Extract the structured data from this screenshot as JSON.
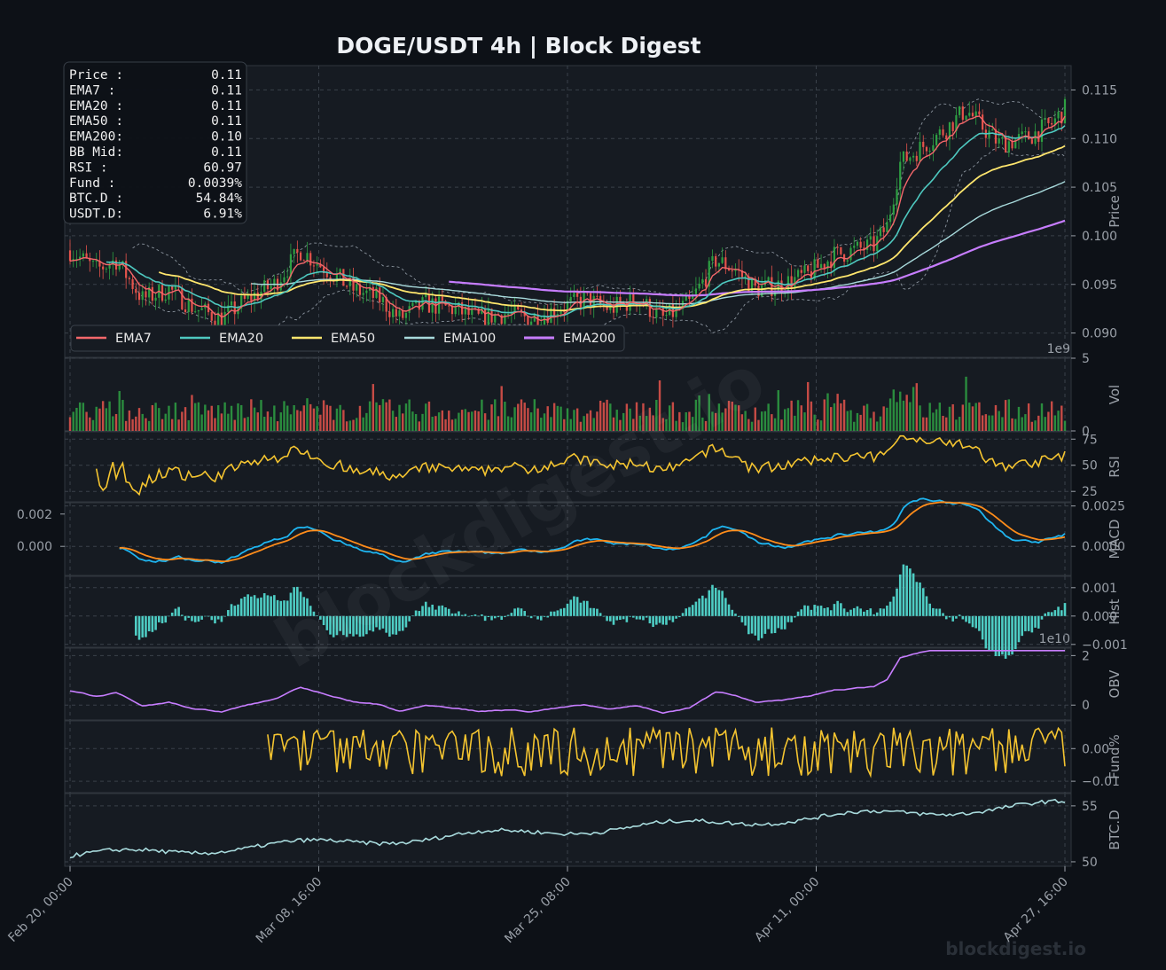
{
  "title": "DOGE/USDT  4h  |  Block Digest",
  "watermark": "blockdigest.io",
  "footer_brand": "blockdigest.io",
  "colors": {
    "background": "#0d1117",
    "panel": "#161b22",
    "up": "#2ea043",
    "down": "#e5534b",
    "ema7": "#f4676b",
    "ema20": "#4ec9c0",
    "ema50": "#ffe66d",
    "ema100": "#a8dadc",
    "ema200": "#c77dff",
    "rsi": "#f4c430",
    "macd": "#1fb5f0",
    "signal": "#ff8c1a",
    "hist": "#4ecdc4",
    "obv": "#c77dff",
    "funding": "#f4c430",
    "btcd": "#a8dadc"
  },
  "info_box": [
    {
      "label": "Price :",
      "value": "0.11"
    },
    {
      "label": "EMA7  :",
      "value": "0.11"
    },
    {
      "label": "EMA20 :",
      "value": "0.11"
    },
    {
      "label": "EMA50 :",
      "value": "0.11"
    },
    {
      "label": "EMA200:",
      "value": "0.10"
    },
    {
      "label": "BB Mid:",
      "value": "0.11"
    },
    {
      "label": "RSI   :",
      "value": "60.97"
    },
    {
      "label": "Fund  :",
      "value": "0.0039%"
    },
    {
      "label": "BTC.D :",
      "value": "54.84%"
    },
    {
      "label": "USDT.D:",
      "value": "6.91%"
    }
  ],
  "chart_data": {
    "type": "line",
    "description_type": "candlestick with indicator sub-panels",
    "x_ticks": [
      "Feb 20, 00:00",
      "Mar 08, 16:00",
      "Mar 25, 08:00",
      "Apr 11, 00:00",
      "Apr 27, 16:00"
    ],
    "legend": [
      "EMA7",
      "EMA20",
      "EMA50",
      "EMA100",
      "EMA200"
    ],
    "legend_placement": "lower-left of price panel",
    "grid": true,
    "panels": [
      {
        "id": "price",
        "ylabel": "Price",
        "ylim": [
          0.0875,
          0.1175
        ],
        "ticks": [
          "0.090",
          "0.095",
          "0.100",
          "0.105",
          "0.110",
          "0.115"
        ],
        "tick_values": [
          0.09,
          0.095,
          0.1,
          0.105,
          0.11,
          0.115
        ]
      },
      {
        "id": "vol",
        "ylabel": "Vol",
        "ylim": [
          0,
          5
        ],
        "ticks": [
          "0",
          "5"
        ],
        "tick_values": [
          0,
          5
        ],
        "offset": "1e9"
      },
      {
        "id": "rsi",
        "ylabel": "RSI",
        "ylim": [
          15,
          82
        ],
        "ticks": [
          "25",
          "50",
          "75"
        ],
        "tick_values": [
          25,
          50,
          75
        ]
      },
      {
        "id": "macd",
        "ylabel": "MACD",
        "ylim": [
          -0.0018,
          0.0027
        ],
        "ticks": [
          "0.0000",
          "0.0025"
        ],
        "tick_values": [
          0,
          0.0025
        ],
        "left_ticks": [
          "0.000",
          "0.002"
        ],
        "left_tick_values": [
          0,
          0.002
        ]
      },
      {
        "id": "hist",
        "ylabel": "Hist",
        "ylim": [
          -0.0011,
          0.0014
        ],
        "ticks": [
          "−0.001",
          "0.000",
          "0.001"
        ],
        "tick_values": [
          -0.001,
          0,
          0.001
        ]
      },
      {
        "id": "obv",
        "ylabel": "OBV",
        "ylim": [
          -0.6,
          2.3
        ],
        "ticks": [
          "0",
          "2"
        ],
        "tick_values": [
          0,
          2
        ],
        "offset": "1e10"
      },
      {
        "id": "fund",
        "ylabel": "Fund%",
        "ylim": [
          -0.0135,
          0.0085
        ],
        "ticks": [
          "−0.01",
          "0.00"
        ],
        "tick_values": [
          -0.01,
          0.0
        ]
      },
      {
        "id": "btcd",
        "ylabel": "BTC.D",
        "ylim": [
          49.6,
          56.1
        ],
        "ticks": [
          "50",
          "55"
        ],
        "tick_values": [
          50,
          55
        ]
      }
    ],
    "price_anchors": [
      [
        0,
        0.0985
      ],
      [
        8,
        0.0965
      ],
      [
        14,
        0.0975
      ],
      [
        22,
        0.0935
      ],
      [
        30,
        0.0945
      ],
      [
        38,
        0.0925
      ],
      [
        46,
        0.0915
      ],
      [
        54,
        0.0935
      ],
      [
        62,
        0.095
      ],
      [
        70,
        0.0985
      ],
      [
        78,
        0.0965
      ],
      [
        86,
        0.0945
      ],
      [
        94,
        0.0935
      ],
      [
        100,
        0.0915
      ],
      [
        108,
        0.093
      ],
      [
        116,
        0.0925
      ],
      [
        124,
        0.0915
      ],
      [
        132,
        0.092
      ],
      [
        140,
        0.0915
      ],
      [
        148,
        0.0925
      ],
      [
        156,
        0.0935
      ],
      [
        164,
        0.0925
      ],
      [
        172,
        0.0935
      ],
      [
        180,
        0.0915
      ],
      [
        188,
        0.093
      ],
      [
        196,
        0.0975
      ],
      [
        202,
        0.0965
      ],
      [
        208,
        0.0945
      ],
      [
        216,
        0.095
      ],
      [
        224,
        0.096
      ],
      [
        232,
        0.098
      ],
      [
        238,
        0.0985
      ],
      [
        244,
        0.099
      ],
      [
        248,
        0.101
      ],
      [
        252,
        0.1075
      ],
      [
        258,
        0.109
      ],
      [
        266,
        0.111
      ],
      [
        272,
        0.113
      ],
      [
        276,
        0.1115
      ],
      [
        282,
        0.1095
      ],
      [
        290,
        0.11
      ],
      [
        298,
        0.1115
      ],
      [
        302,
        0.113
      ]
    ],
    "num_candles": 303
  }
}
